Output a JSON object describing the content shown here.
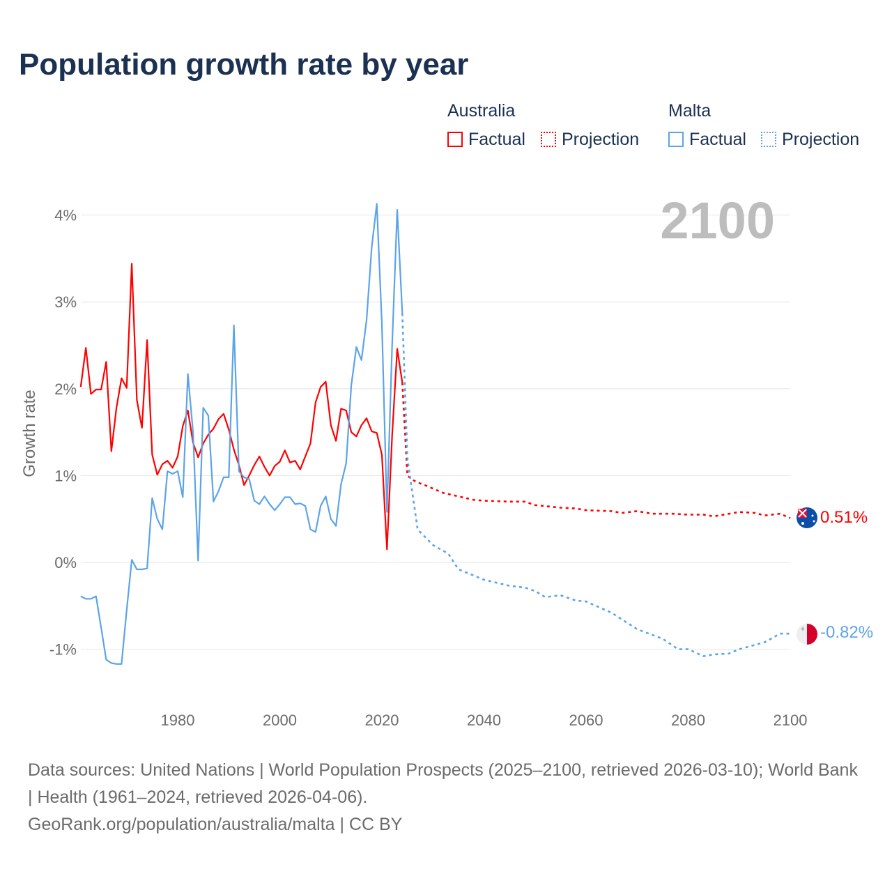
{
  "title": "Population growth rate by year",
  "legend": {
    "groups": [
      {
        "country": "Australia",
        "factual": "Factual",
        "projection": "Projection",
        "color": "#ff0000"
      },
      {
        "country": "Malta",
        "factual": "Factual",
        "projection": "Projection",
        "color": "#5ba4e8"
      }
    ]
  },
  "footer": {
    "sources": "Data sources: United Nations | World Population Prospects (2025–2100, retrieved 2026-03-10); World Bank | Health (1961–2024, retrieved 2026-04-06).",
    "credit": "GeoRank.org/population/australia/malta | CC BY"
  },
  "chart_data": {
    "type": "line",
    "title": "Population growth rate by year",
    "ylabel": "Growth rate",
    "xlabel": "",
    "year_label": "2100",
    "xlim": [
      1961,
      2100
    ],
    "ylim": [
      -1.5,
      4.3
    ],
    "x_ticks": [
      1980,
      2000,
      2020,
      2040,
      2060,
      2080,
      2100
    ],
    "y_ticks": [
      {
        "v": 4,
        "label": "4%"
      },
      {
        "v": 3,
        "label": "3%"
      },
      {
        "v": 2,
        "label": "2%"
      },
      {
        "v": 1,
        "label": "1%"
      },
      {
        "v": 0,
        "label": "0%"
      },
      {
        "v": -1,
        "label": "-1%"
      }
    ],
    "grid": true,
    "legend_position": "top-right",
    "series": [
      {
        "name": "Australia Factual",
        "color": "#ff0000",
        "dashed": false,
        "start": 1961,
        "values": [
          2.02,
          2.47,
          1.94,
          1.99,
          1.99,
          2.31,
          1.28,
          1.78,
          2.12,
          2.01,
          3.44,
          1.87,
          1.55,
          2.56,
          1.24,
          1.01,
          1.13,
          1.17,
          1.09,
          1.22,
          1.57,
          1.75,
          1.38,
          1.21,
          1.37,
          1.47,
          1.54,
          1.65,
          1.71,
          1.53,
          1.3,
          1.12,
          0.89,
          1.0,
          1.12,
          1.22,
          1.1,
          1.0,
          1.11,
          1.16,
          1.29,
          1.15,
          1.17,
          1.07,
          1.22,
          1.37,
          1.84,
          2.02,
          2.08,
          1.58,
          1.4,
          1.77,
          1.75,
          1.5,
          1.45,
          1.58,
          1.66,
          1.51,
          1.49,
          1.24,
          0.15,
          1.46,
          2.46,
          2.07
        ]
      },
      {
        "name": "Australia Projection",
        "color": "#ff0000",
        "dashed": true,
        "points": [
          [
            2024,
            2.07
          ],
          [
            2025,
            1.0
          ],
          [
            2026,
            0.95
          ],
          [
            2027,
            0.92
          ],
          [
            2028,
            0.9
          ],
          [
            2030,
            0.85
          ],
          [
            2032,
            0.8
          ],
          [
            2035,
            0.76
          ],
          [
            2038,
            0.72
          ],
          [
            2040,
            0.71
          ],
          [
            2045,
            0.7
          ],
          [
            2048,
            0.7
          ],
          [
            2050,
            0.66
          ],
          [
            2055,
            0.63
          ],
          [
            2058,
            0.62
          ],
          [
            2060,
            0.6
          ],
          [
            2065,
            0.59
          ],
          [
            2067,
            0.57
          ],
          [
            2070,
            0.59
          ],
          [
            2073,
            0.56
          ],
          [
            2077,
            0.56
          ],
          [
            2080,
            0.55
          ],
          [
            2083,
            0.55
          ],
          [
            2085,
            0.53
          ],
          [
            2090,
            0.58
          ],
          [
            2093,
            0.57
          ],
          [
            2095,
            0.54
          ],
          [
            2098,
            0.56
          ],
          [
            2100,
            0.51
          ]
        ],
        "end_label": "0.51%"
      },
      {
        "name": "Malta Factual",
        "color": "#5ba4e8",
        "dashed": false,
        "start": 1961,
        "values": [
          -0.39,
          -0.42,
          -0.42,
          -0.39,
          -0.75,
          -1.12,
          -1.16,
          -1.17,
          -1.17,
          -0.55,
          0.03,
          -0.08,
          -0.08,
          -0.07,
          0.74,
          0.5,
          0.38,
          1.05,
          1.02,
          1.05,
          0.75,
          2.17,
          1.5,
          0.02,
          1.78,
          1.69,
          0.7,
          0.82,
          0.98,
          0.98,
          2.73,
          1.05,
          0.98,
          0.96,
          0.71,
          0.67,
          0.76,
          0.67,
          0.6,
          0.67,
          0.75,
          0.75,
          0.67,
          0.68,
          0.65,
          0.38,
          0.35,
          0.65,
          0.76,
          0.5,
          0.42,
          0.9,
          1.14,
          2.04,
          2.48,
          2.33,
          2.79,
          3.63,
          4.13,
          2.75,
          0.58,
          2.5,
          4.06,
          2.87
        ]
      },
      {
        "name": "Malta Projection",
        "color": "#5ba4e8",
        "dashed": true,
        "points": [
          [
            2024,
            2.87
          ],
          [
            2025,
            1.2
          ],
          [
            2027,
            0.38
          ],
          [
            2030,
            0.2
          ],
          [
            2033,
            0.1
          ],
          [
            2035,
            -0.08
          ],
          [
            2040,
            -0.2
          ],
          [
            2045,
            -0.27
          ],
          [
            2048,
            -0.29
          ],
          [
            2050,
            -0.33
          ],
          [
            2052,
            -0.4
          ],
          [
            2055,
            -0.38
          ],
          [
            2058,
            -0.44
          ],
          [
            2060,
            -0.45
          ],
          [
            2065,
            -0.58
          ],
          [
            2070,
            -0.77
          ],
          [
            2075,
            -0.88
          ],
          [
            2078,
            -1.0
          ],
          [
            2080,
            -1.0
          ],
          [
            2083,
            -1.08
          ],
          [
            2085,
            -1.06
          ],
          [
            2088,
            -1.05
          ],
          [
            2090,
            -1.0
          ],
          [
            2095,
            -0.92
          ],
          [
            2098,
            -0.82
          ],
          [
            2100,
            -0.82
          ]
        ],
        "end_label": "-0.82%"
      }
    ]
  }
}
